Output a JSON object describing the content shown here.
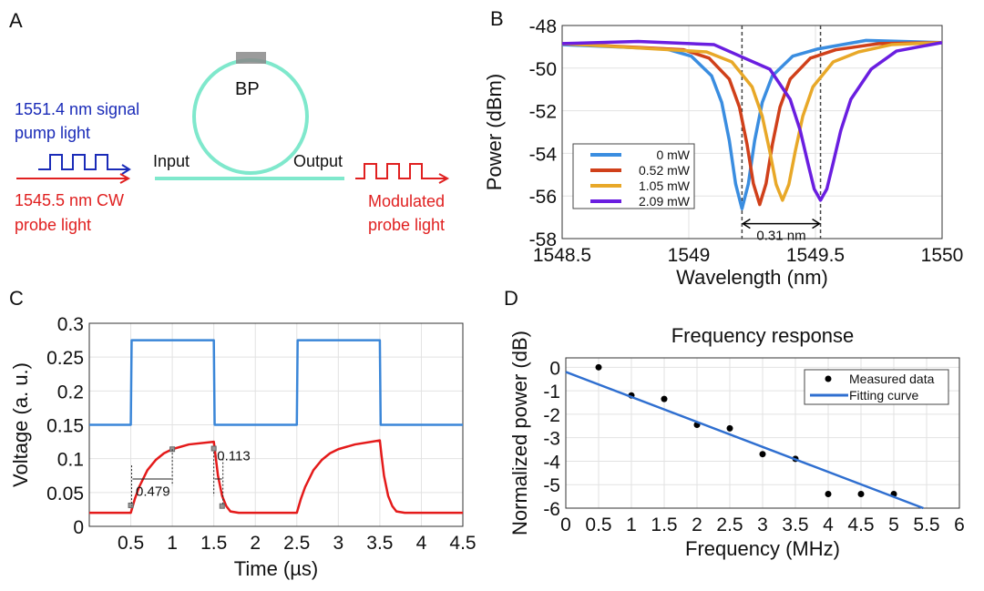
{
  "panels": {
    "a": "A",
    "b": "B",
    "c": "C",
    "d": "D"
  },
  "diagram": {
    "ring_label": "BP",
    "input_label": "Input",
    "output_label": "Output",
    "pump_line1": "1551.4 nm signal",
    "pump_line2": "pump light",
    "probe_line1": "1545.5 nm CW",
    "probe_line2": "probe light",
    "mod_line1": "Modulated",
    "mod_line2": "probe light",
    "colors": {
      "ring": "#7fe8cc",
      "pump": "#1a2bb8",
      "probe": "#e02020",
      "bp": "#8a8a8a"
    }
  },
  "chart_data": [
    {
      "id": "b",
      "type": "line",
      "title": "",
      "xlabel": "Wavelength (nm)",
      "ylabel": "Power (dBm)",
      "xlim": [
        1548.5,
        1550
      ],
      "ylim": [
        -58,
        -48
      ],
      "xticks": [
        1548.5,
        1549,
        1549.5,
        1550
      ],
      "xtick_labels": [
        "1548.5",
        "1549",
        "1549.5",
        "1550"
      ],
      "yticks": [
        -58,
        -56,
        -54,
        -52,
        -50,
        -48
      ],
      "ytick_labels": [
        "-58",
        "-56",
        "-54",
        "-52",
        "-50",
        "-48"
      ],
      "grid": true,
      "legend": "lower-left",
      "series": [
        {
          "name": "0 mW",
          "color": "#3a8de0",
          "x": [
            1548.5,
            1548.91,
            1549.01,
            1549.09,
            1549.13,
            1549.16,
            1549.185,
            1549.21,
            1549.235,
            1549.26,
            1549.29,
            1549.33,
            1549.41,
            1549.51,
            1549.7,
            1550
          ],
          "y": [
            -48.9,
            -49.1,
            -49.44,
            -50.36,
            -51.61,
            -53.4,
            -55.44,
            -56.6,
            -55.44,
            -53.4,
            -51.61,
            -50.36,
            -49.44,
            -49.1,
            -48.7,
            -48.8
          ]
        },
        {
          "name": "0.52 mW",
          "color": "#d0401a",
          "x": [
            1548.5,
            1548.98,
            1549.08,
            1549.16,
            1549.2,
            1549.23,
            1549.255,
            1549.28,
            1549.305,
            1549.33,
            1549.36,
            1549.4,
            1549.48,
            1549.58,
            1549.75,
            1550
          ],
          "y": [
            -48.85,
            -49.14,
            -49.53,
            -50.52,
            -51.83,
            -53.58,
            -55.42,
            -56.4,
            -55.42,
            -53.58,
            -51.83,
            -50.52,
            -49.53,
            -49.14,
            -48.85,
            -48.8
          ]
        },
        {
          "name": "1.05 mW",
          "color": "#e8a828",
          "x": [
            1548.5,
            1549.07,
            1549.17,
            1549.25,
            1549.29,
            1549.32,
            1549.345,
            1549.37,
            1549.395,
            1549.42,
            1549.45,
            1549.49,
            1549.57,
            1549.67,
            1549.8,
            1550
          ],
          "y": [
            -48.85,
            -49.24,
            -49.71,
            -50.88,
            -52.26,
            -53.92,
            -55.46,
            -56.2,
            -55.46,
            -53.92,
            -52.26,
            -50.88,
            -49.71,
            -49.24,
            -48.9,
            -48.8
          ]
        },
        {
          "name": "2.09 mW",
          "color": "#6a1ee0",
          "x": [
            1548.5,
            1548.8,
            1549.1,
            1549.22,
            1549.32,
            1549.4,
            1549.44,
            1549.47,
            1549.495,
            1549.52,
            1549.545,
            1549.57,
            1549.6,
            1549.64,
            1549.72,
            1549.82,
            1550
          ],
          "y": [
            -48.85,
            -48.75,
            -48.9,
            -49.53,
            -50.05,
            -51.46,
            -52.93,
            -54.45,
            -55.67,
            -56.2,
            -55.67,
            -54.45,
            -52.93,
            -51.46,
            -50.05,
            -49.2,
            -48.8
          ]
        }
      ],
      "annotations": {
        "shift_label": "0.31 nm",
        "marker_x": [
          1549.21,
          1549.52
        ]
      }
    },
    {
      "id": "c",
      "type": "line",
      "title": "",
      "xlabel": "Time (µs)",
      "ylabel": "Voltage (a. u.)",
      "xlim": [
        0,
        4.5
      ],
      "ylim": [
        0,
        0.3
      ],
      "xticks": [
        0.5,
        1,
        1.5,
        2,
        2.5,
        3,
        3.5,
        4,
        4.5
      ],
      "xtick_labels": [
        "0.5",
        "1",
        "1.5",
        "2",
        "2.5",
        "3",
        "3.5",
        "4",
        "4.5"
      ],
      "yticks": [
        0,
        0.05,
        0.1,
        0.15,
        0.2,
        0.25,
        0.3
      ],
      "ytick_labels": [
        "0",
        "0.05",
        "0.1",
        "0.15",
        "0.2",
        "0.25",
        "0.3"
      ],
      "grid": true,
      "series": [
        {
          "color": "#3a86d8",
          "x": [
            0,
            0.5,
            0.51,
            1.5,
            1.51,
            2.5,
            2.51,
            3.5,
            3.51,
            4.5
          ],
          "y": [
            0.15,
            0.15,
            0.275,
            0.275,
            0.15,
            0.15,
            0.275,
            0.275,
            0.15,
            0.15
          ]
        },
        {
          "color": "#e41a1a",
          "x": [
            0,
            0.5,
            0.55,
            0.6,
            0.7,
            0.8,
            0.9,
            1.0,
            1.2,
            1.5,
            1.52,
            1.55,
            1.6,
            1.65,
            1.7,
            1.8,
            2.5,
            2.55,
            2.6,
            2.7,
            2.8,
            2.9,
            3.0,
            3.2,
            3.5,
            3.52,
            3.55,
            3.6,
            3.65,
            3.7,
            3.8,
            4.5
          ],
          "y": [
            0.02,
            0.02,
            0.041,
            0.058,
            0.083,
            0.098,
            0.108,
            0.114,
            0.121,
            0.125,
            0.105,
            0.075,
            0.045,
            0.03,
            0.022,
            0.02,
            0.02,
            0.041,
            0.058,
            0.083,
            0.098,
            0.108,
            0.114,
            0.121,
            0.127,
            0.105,
            0.075,
            0.045,
            0.03,
            0.022,
            0.02,
            0.02
          ]
        }
      ],
      "annotations": {
        "rise_label": "0.479",
        "fall_label": "0.113"
      }
    },
    {
      "id": "d",
      "type": "scatter",
      "title": "Frequency response",
      "xlabel": "Frequency (MHz)",
      "ylabel": "Normalized power (dB)",
      "xlim": [
        0,
        6
      ],
      "ylim": [
        -6,
        0.4
      ],
      "xticks": [
        0,
        0.5,
        1,
        1.5,
        2,
        2.5,
        3,
        3.5,
        4,
        4.5,
        5,
        5.5,
        6
      ],
      "xtick_labels": [
        "0",
        "0.5",
        "1",
        "1.5",
        "2",
        "2.5",
        "3",
        "3.5",
        "4",
        "4.5",
        "5",
        "5.5",
        "6"
      ],
      "yticks": [
        -6,
        -5,
        -4,
        -3,
        -2,
        -1,
        0
      ],
      "ytick_labels": [
        "-6",
        "-5",
        "-4",
        "-3",
        "-2",
        "-1",
        "0"
      ],
      "grid": true,
      "legend": "top-right",
      "series": [
        {
          "name": "Measured data",
          "kind": "scatter",
          "color": "#000000",
          "x": [
            0.5,
            1,
            1.5,
            2,
            2.5,
            3,
            3.5,
            4,
            4.5,
            5
          ],
          "y": [
            0,
            -1.2,
            -1.35,
            -2.45,
            -2.6,
            -3.7,
            -3.9,
            -5.4,
            -5.4,
            -5.4
          ]
        },
        {
          "name": "Fitting curve",
          "kind": "line",
          "color": "#2f6fd0",
          "x": [
            0,
            5.45
          ],
          "y": [
            -0.2,
            -6
          ]
        }
      ]
    }
  ]
}
